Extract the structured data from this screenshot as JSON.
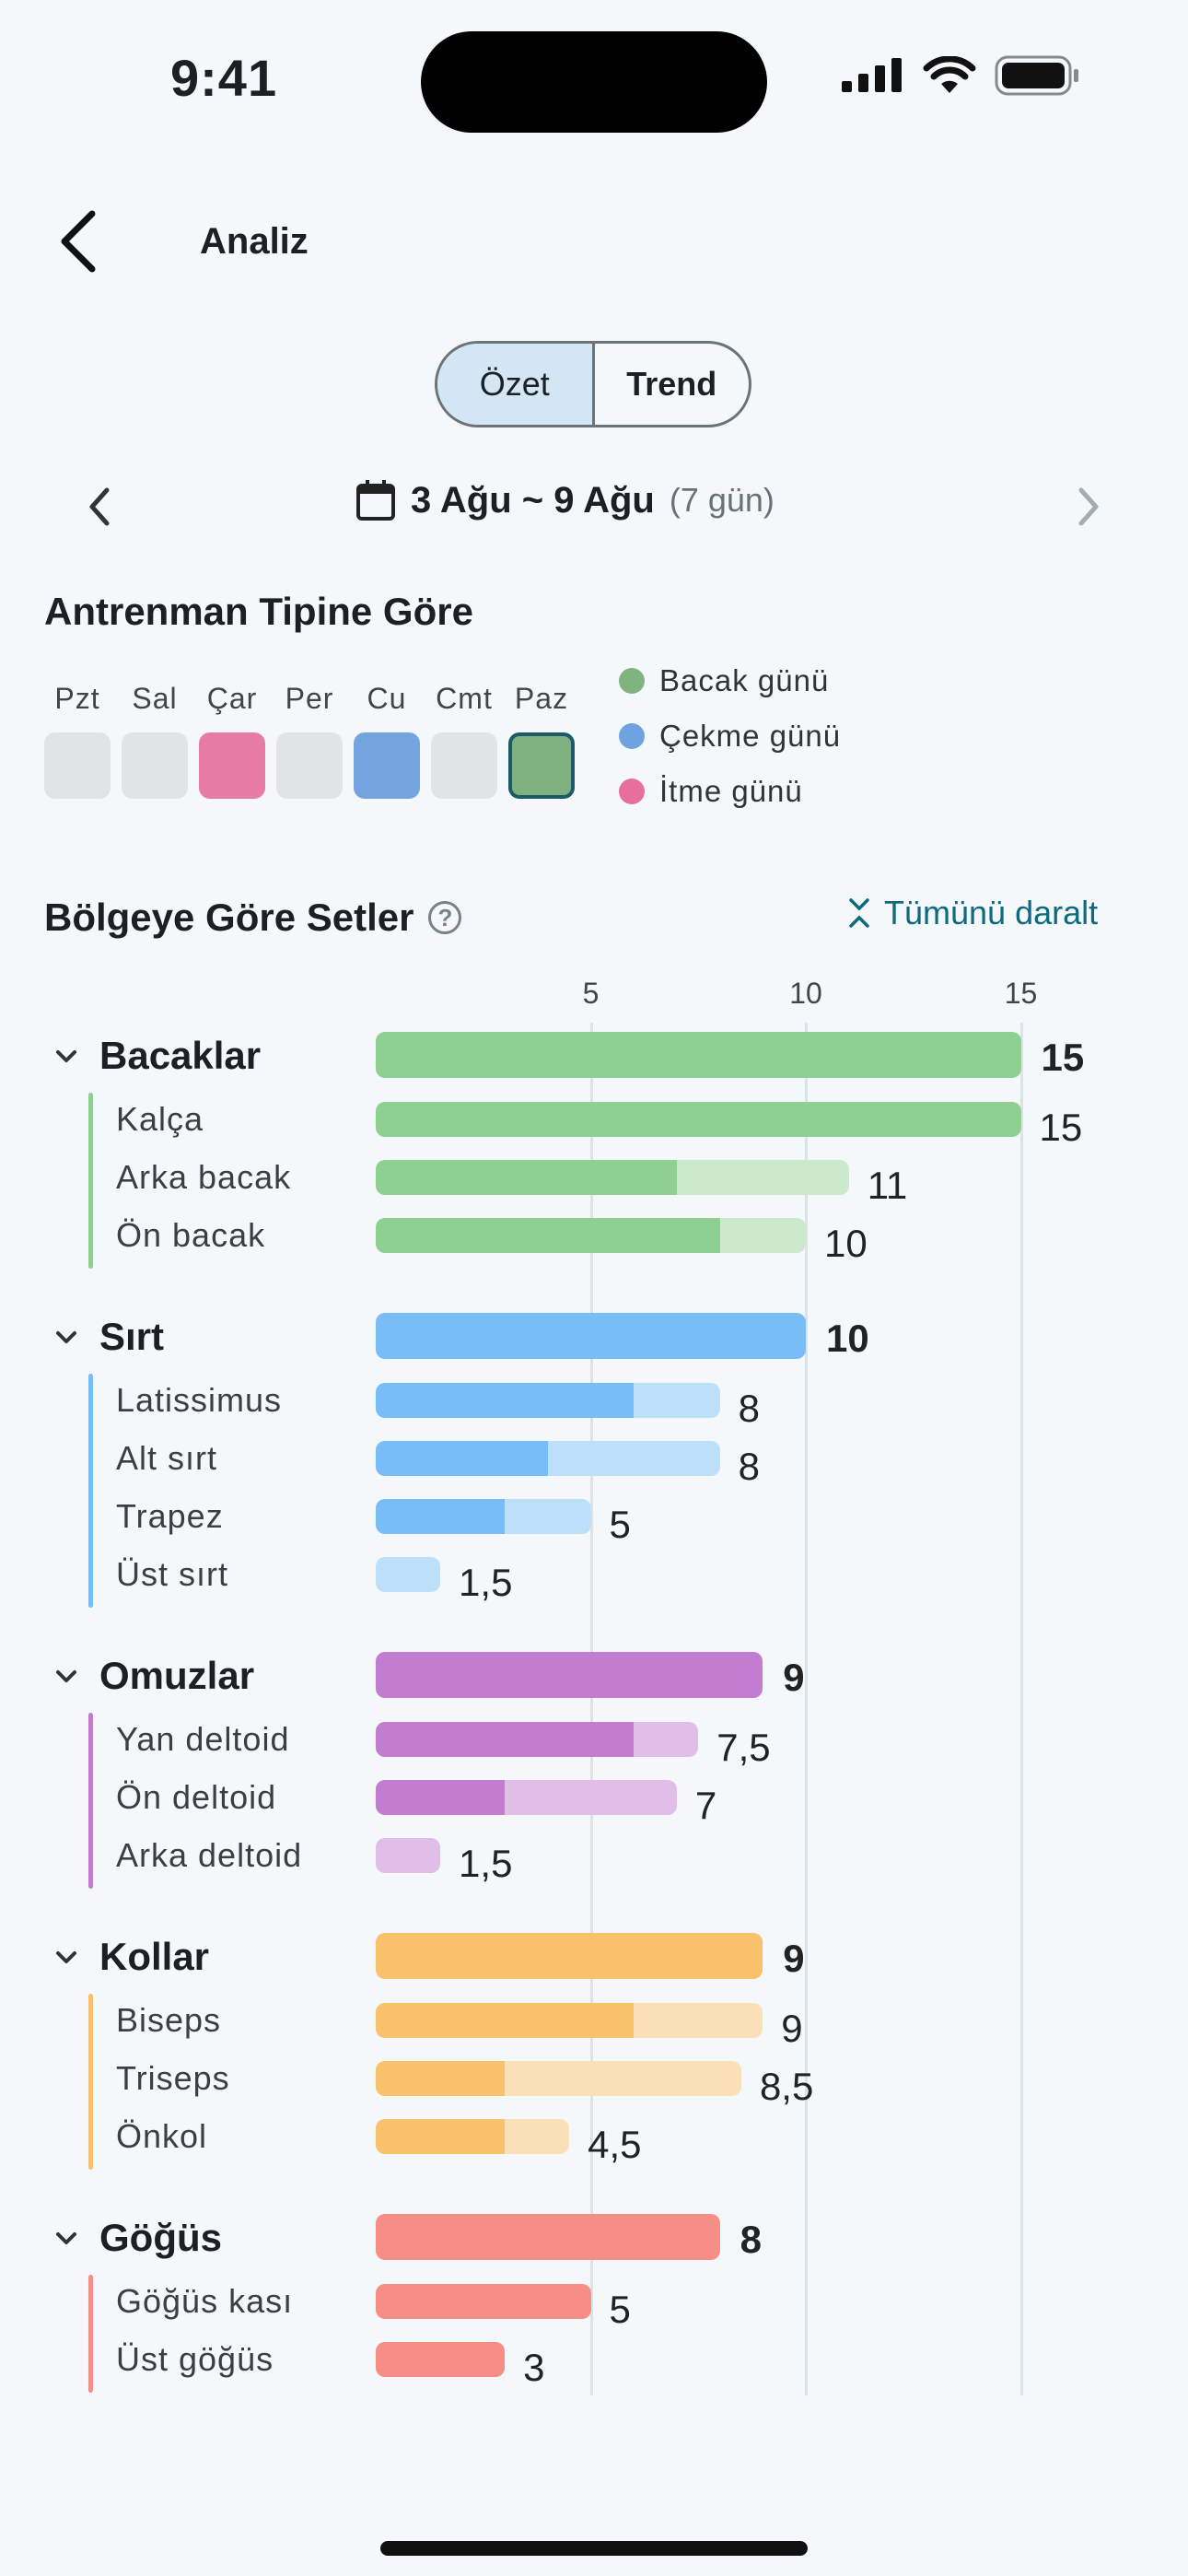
{
  "status": {
    "time": "9:41"
  },
  "nav": {
    "title": "Analiz"
  },
  "segmented": {
    "left": "Özet",
    "right": "Trend",
    "active": "left"
  },
  "date": {
    "range": "3 Ağu ~ 9 Ağu",
    "count": "(7 gün)"
  },
  "training_type": {
    "title": "Antrenman Tipine Göre",
    "days": [
      {
        "label": "Pzt",
        "type": "none"
      },
      {
        "label": "Sal",
        "type": "none"
      },
      {
        "label": "Çar",
        "type": "push"
      },
      {
        "label": "Per",
        "type": "none"
      },
      {
        "label": "Cu",
        "type": "pull"
      },
      {
        "label": "Cmt",
        "type": "none"
      },
      {
        "label": "Paz",
        "type": "legs",
        "selected": true
      }
    ],
    "legend": [
      {
        "label": "Bacak günü",
        "color": "#7fb37f"
      },
      {
        "label": "Çekme günü",
        "color": "#6fa3e0"
      },
      {
        "label": "İtme günü",
        "color": "#e86e9e"
      }
    ]
  },
  "sets_by_region": {
    "title": "Bölgeye Göre Setler",
    "help": "?",
    "collapse_label": "Tümünü daralt",
    "axis_ticks": [
      "5",
      "10",
      "15"
    ]
  },
  "chart_data": {
    "type": "bar",
    "title": "Bölgeye Göre Setler",
    "xlim": [
      0,
      15
    ],
    "x_ticks": [
      5,
      10,
      15
    ],
    "groups": [
      {
        "name": "Bacaklar",
        "total": 15,
        "total_label": "15",
        "color": "#90cf92",
        "light": "#cce8cd",
        "items": [
          {
            "name": "Kalça",
            "value": 15,
            "label": "15",
            "primary": 15
          },
          {
            "name": "Arka bacak",
            "value": 11,
            "label": "11",
            "primary": 7
          },
          {
            "name": "Ön bacak",
            "value": 10,
            "label": "10",
            "primary": 8
          }
        ]
      },
      {
        "name": "Sırt",
        "total": 10,
        "total_label": "10",
        "color": "#78bdf6",
        "light": "#bde0fa",
        "items": [
          {
            "name": "Latissimus",
            "value": 8,
            "label": "8",
            "primary": 6
          },
          {
            "name": "Alt sırt",
            "value": 8,
            "label": "8",
            "primary": 4
          },
          {
            "name": "Trapez",
            "value": 5,
            "label": "5",
            "primary": 3
          },
          {
            "name": "Üst sırt",
            "value": 1.5,
            "label": "1,5",
            "primary": 0
          }
        ]
      },
      {
        "name": "Omuzlar",
        "total": 9,
        "total_label": "9",
        "color": "#c27cd0",
        "light": "#e0bee8",
        "items": [
          {
            "name": "Yan deltoid",
            "value": 7.5,
            "label": "7,5",
            "primary": 6
          },
          {
            "name": "Ön deltoid",
            "value": 7,
            "label": "7",
            "primary": 3
          },
          {
            "name": "Arka deltoid",
            "value": 1.5,
            "label": "1,5",
            "primary": 0
          }
        ]
      },
      {
        "name": "Kollar",
        "total": 9,
        "total_label": "9",
        "color": "#f9c169",
        "light": "#f9e0b9",
        "items": [
          {
            "name": "Biseps",
            "value": 9,
            "label": "9",
            "primary": 6
          },
          {
            "name": "Triseps",
            "value": 8.5,
            "label": "8,5",
            "primary": 3
          },
          {
            "name": "Önkol",
            "value": 4.5,
            "label": "4,5",
            "primary": 3
          }
        ]
      },
      {
        "name": "Göğüs",
        "total": 8,
        "total_label": "8",
        "color": "#f58e87",
        "light": "#f9c9c5",
        "items": [
          {
            "name": "Göğüs kası",
            "value": 5,
            "label": "5",
            "primary": 5
          },
          {
            "name": "Üst göğüs",
            "value": 3,
            "label": "3",
            "primary": 3
          }
        ]
      }
    ]
  }
}
